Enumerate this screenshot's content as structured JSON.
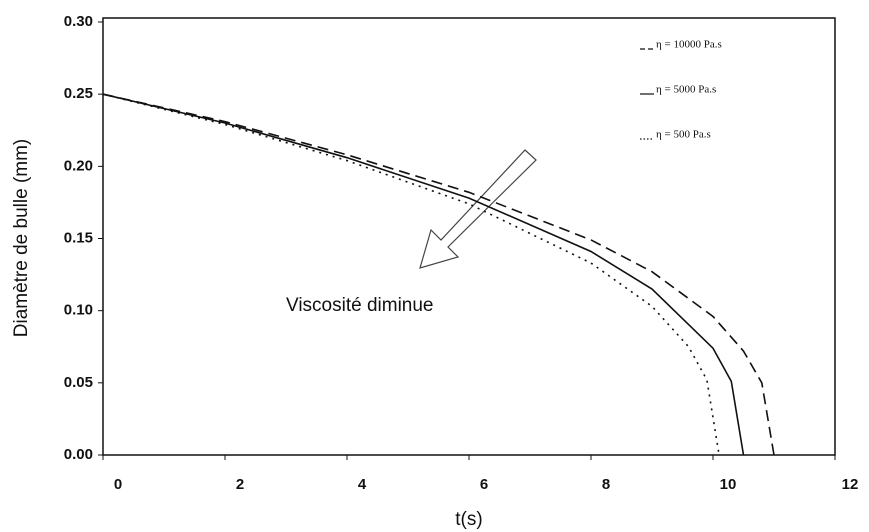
{
  "chart_data": {
    "type": "line",
    "x_label": "t(s)",
    "y_label": "Diamètre de bulle (mm)",
    "annotation": "Viscosité diminue",
    "xlim": [
      0,
      12
    ],
    "xticks": [
      0,
      2,
      4,
      6,
      8,
      10,
      12
    ],
    "ylim": [
      0,
      0.3
    ],
    "yticks": [
      {
        "value": 0,
        "label": "0.00"
      },
      0.05,
      {
        "value": 0.1,
        "label": "0.10"
      },
      0.15,
      {
        "value": 0.2,
        "label": "0.20"
      },
      0.25,
      {
        "value": 0.3,
        "label": "0.30"
      }
    ],
    "legend": "top-right",
    "series": [
      {
        "name": "η = 10000 Pa.s",
        "color": "#111111",
        "style": "dashed",
        "x": [
          0,
          2,
          4,
          6,
          8,
          9,
          10,
          10.5,
          10.8,
          11
        ],
        "values": [
          0.25,
          0.231,
          0.208,
          0.182,
          0.149,
          0.127,
          0.096,
          0.072,
          0.05,
          0
        ]
      },
      {
        "name": "η = 5000 Pa.s",
        "color": "#111111",
        "style": "solid",
        "x": [
          0,
          2,
          4,
          6,
          8,
          9,
          10,
          10.3,
          10.5
        ],
        "values": [
          0.25,
          0.23,
          0.206,
          0.178,
          0.141,
          0.115,
          0.074,
          0.051,
          0
        ]
      },
      {
        "name": "η = 500 Pa.s",
        "color": "#111111",
        "style": "dotted",
        "x": [
          0,
          2,
          4,
          6,
          8,
          9,
          9.6,
          9.9,
          10.1
        ],
        "values": [
          0.25,
          0.229,
          0.204,
          0.174,
          0.133,
          0.103,
          0.075,
          0.052,
          0
        ]
      }
    ]
  }
}
